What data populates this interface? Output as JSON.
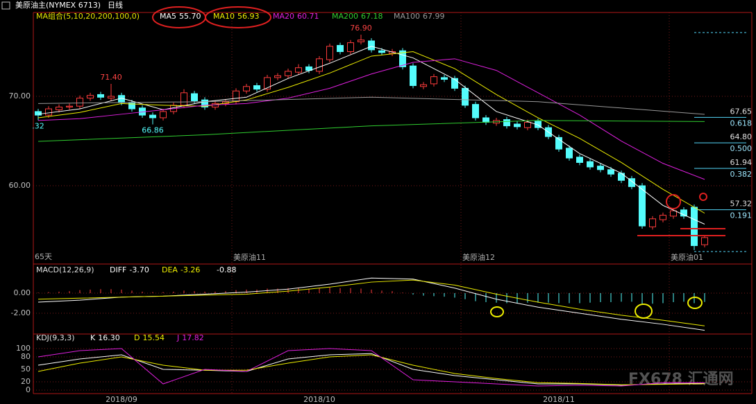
{
  "header": {
    "symbol": "美原油主(NYMEX 6713)",
    "period": "日线"
  },
  "watermark": "FX678 汇通网",
  "chart_data": [
    {
      "type": "candlestick",
      "title": "MA组合(5,10,20,200,100,0)",
      "categories": [
        null,
        null,
        null,
        null,
        null,
        null,
        null,
        null,
        "2018/09",
        null,
        null,
        null,
        null,
        null,
        null,
        null,
        null,
        null,
        null,
        null,
        null,
        null,
        null,
        null,
        null,
        null,
        null,
        "2018/10",
        null,
        null,
        null,
        null,
        null,
        null,
        null,
        null,
        null,
        null,
        null,
        null,
        null,
        null,
        null,
        null,
        null,
        null,
        null,
        null,
        null,
        null,
        "2018/11",
        null,
        null,
        null,
        null,
        null,
        null,
        null,
        null,
        null,
        null,
        null,
        null,
        null,
        null
      ],
      "open": [
        68.3,
        67.9,
        68.5,
        68.8,
        68.9,
        69.8,
        70.2,
        69.8,
        70.1,
        69.3,
        68.7,
        67.9,
        67.6,
        68.3,
        69.0,
        70.3,
        69.6,
        68.8,
        69.2,
        69.4,
        70.6,
        71.2,
        70.8,
        72.1,
        72.3,
        72.7,
        73.3,
        72.8,
        74.1,
        75.7,
        75.0,
        76.1,
        76.2,
        75.1,
        74.8,
        75.1,
        73.4,
        71.1,
        71.4,
        72.1,
        72.0,
        70.9,
        69.1,
        67.6,
        67.0,
        67.4,
        66.9,
        66.5,
        67.2,
        66.5,
        65.4,
        64.2,
        63.2,
        62.7,
        62.2,
        61.8,
        61.4,
        60.8,
        60.0,
        55.4,
        56.2,
        56.6,
        57.3,
        57.6,
        53.4
      ],
      "high": [
        68.6,
        68.9,
        69.1,
        69.2,
        70.1,
        70.4,
        70.5,
        71.4,
        70.4,
        69.6,
        69.0,
        68.2,
        68.6,
        69.3,
        70.8,
        70.6,
        69.9,
        69.5,
        69.7,
        70.9,
        71.4,
        71.5,
        72.4,
        72.6,
        73.1,
        73.6,
        73.6,
        74.5,
        75.9,
        76.0,
        76.3,
        76.9,
        76.5,
        75.4,
        75.3,
        75.4,
        73.7,
        71.6,
        72.5,
        72.4,
        72.3,
        71.2,
        69.4,
        67.9,
        67.6,
        67.7,
        67.2,
        67.4,
        67.5,
        66.8,
        65.7,
        64.5,
        63.5,
        63.0,
        62.5,
        62.1,
        61.7,
        61.1,
        60.3,
        56.6,
        57.0,
        57.5,
        57.6,
        57.9,
        54.5
      ],
      "low": [
        67.32,
        67.6,
        68.2,
        68.5,
        68.6,
        69.5,
        69.6,
        69.5,
        69.0,
        68.3,
        67.6,
        66.86,
        67.3,
        68.0,
        68.7,
        69.2,
        68.5,
        68.5,
        68.9,
        69.1,
        70.3,
        70.5,
        70.5,
        71.8,
        72.0,
        72.4,
        72.6,
        72.5,
        73.8,
        74.7,
        74.7,
        75.8,
        74.9,
        74.6,
        74.5,
        73.0,
        70.9,
        70.8,
        71.1,
        71.6,
        70.6,
        68.7,
        67.3,
        66.8,
        66.7,
        66.4,
        66.3,
        66.2,
        66.2,
        65.2,
        63.8,
        62.8,
        62.3,
        61.8,
        61.5,
        61.0,
        60.3,
        59.6,
        55.2,
        55.1,
        55.9,
        56.3,
        56.3,
        52.8,
        53.1
      ],
      "close": [
        67.9,
        68.6,
        68.8,
        68.9,
        69.8,
        70.1,
        69.9,
        70.0,
        69.3,
        68.6,
        67.9,
        67.6,
        68.3,
        69.0,
        70.4,
        69.5,
        68.8,
        69.2,
        69.4,
        70.6,
        71.1,
        70.8,
        72.1,
        72.3,
        72.8,
        73.2,
        72.9,
        74.2,
        75.6,
        75.0,
        76.0,
        76.3,
        75.2,
        74.9,
        75.0,
        73.3,
        71.2,
        71.3,
        72.2,
        71.9,
        70.9,
        69.0,
        67.6,
        67.1,
        67.3,
        66.7,
        66.6,
        67.1,
        66.5,
        65.5,
        64.1,
        63.1,
        62.6,
        62.1,
        61.8,
        61.3,
        60.6,
        59.9,
        55.5,
        56.3,
        56.7,
        57.2,
        56.6,
        53.3,
        54.2
      ],
      "up_color": "#ff3c3c",
      "down_color": "#54fcfc",
      "ylim": [
        51.32,
        79.38
      ],
      "yticks": [
        {
          "value": 70,
          "label": "70.00"
        },
        {
          "value": 60,
          "label": "60.00"
        }
      ],
      "grid": true,
      "series": [
        {
          "name": "MA5",
          "last_label": "55.70",
          "color": "#ffffff",
          "x": [
            0,
            4,
            8,
            12,
            16,
            20,
            24,
            28,
            32,
            36,
            40,
            44,
            48,
            52,
            56,
            60,
            64
          ],
          "values": [
            68.0,
            68.6,
            69.8,
            68.5,
            69.4,
            69.9,
            72.0,
            73.7,
            75.6,
            74.3,
            71.9,
            68.3,
            66.8,
            63.6,
            61.4,
            57.8,
            55.7
          ]
        },
        {
          "name": "MA10",
          "last_label": "56.93",
          "color": "#f0f000",
          "x": [
            0,
            4,
            8,
            12,
            16,
            20,
            24,
            28,
            32,
            36,
            40,
            44,
            48,
            52,
            56,
            60,
            64
          ],
          "values": [
            67.6,
            68.2,
            69.2,
            69.0,
            68.9,
            69.6,
            71.0,
            72.6,
            74.5,
            75.0,
            73.1,
            70.2,
            67.6,
            65.3,
            62.6,
            59.6,
            56.93
          ]
        },
        {
          "name": "MA20",
          "last_label": "60.71",
          "color": "#e020e0",
          "x": [
            0,
            4,
            8,
            12,
            16,
            20,
            24,
            28,
            32,
            36,
            40,
            44,
            48,
            52,
            56,
            60,
            64
          ],
          "values": [
            67.3,
            67.5,
            68.0,
            68.5,
            69.0,
            69.2,
            69.8,
            70.9,
            72.5,
            73.8,
            74.2,
            72.9,
            70.4,
            67.9,
            65.0,
            62.5,
            60.71
          ]
        },
        {
          "name": "MA200",
          "last_label": "67.18",
          "color": "#30d030",
          "x": [
            0,
            16,
            32,
            48,
            64
          ],
          "values": [
            64.96,
            65.7,
            66.7,
            67.3,
            67.18
          ]
        },
        {
          "name": "MA100",
          "last_label": "67.99",
          "color": "#9a9a9a",
          "x": [
            0,
            16,
            32,
            48,
            64
          ],
          "values": [
            69.2,
            69.4,
            69.9,
            69.4,
            67.99
          ]
        }
      ],
      "annotations": [
        {
          "x": 7,
          "value": 71.4,
          "label": "71.40"
        },
        {
          "x": 11,
          "value": 66.86,
          "label": "66.86"
        },
        {
          "x": 31,
          "value": 76.9,
          "label": "76.90"
        },
        {
          "x": 0,
          "value": 67.32,
          "label": ".32"
        }
      ],
      "span_label": "65天",
      "contract_labels": [
        {
          "x": 19,
          "label": "美原油11"
        },
        {
          "x": 41,
          "label": "美原油12"
        },
        {
          "x": 61,
          "label": "美原油01"
        }
      ],
      "fib_levels": [
        {
          "price": {
            "value": 67.65,
            "label": "67.65"
          },
          "ratio": {
            "value": 0.618,
            "label": "0.618"
          }
        },
        {
          "price": {
            "value": 64.8,
            "label": "64.80"
          },
          "ratio": {
            "value": 0.5,
            "label": "0.500"
          }
        },
        {
          "price": {
            "value": 61.94,
            "label": "61.94"
          },
          "ratio": {
            "value": 0.382,
            "label": "0.382"
          }
        },
        {
          "price": {
            "value": 57.32,
            "label": "57.32"
          },
          "ratio": {
            "value": 0.191,
            "label": "0.191"
          }
        }
      ],
      "fib_range": [
        77.13,
        52.64
      ]
    },
    {
      "type": "bar",
      "title": "MACD(12,26,9)",
      "values": [
        0.05,
        0.1,
        0.15,
        0.2,
        0.3,
        0.35,
        0.4,
        0.4,
        0.35,
        0.25,
        0.15,
        0.1,
        0.1,
        0.15,
        0.25,
        0.2,
        0.15,
        0.15,
        0.2,
        0.3,
        0.35,
        0.35,
        0.45,
        0.45,
        0.5,
        0.5,
        0.45,
        0.5,
        0.55,
        0.5,
        0.5,
        0.45,
        0.35,
        0.25,
        0.2,
        0.05,
        -0.15,
        -0.25,
        -0.3,
        -0.35,
        -0.45,
        -0.6,
        -0.8,
        -0.9,
        -0.95,
        -1.0,
        -1.0,
        -0.95,
        -0.95,
        -0.95,
        -1.0,
        -1.0,
        -1.0,
        -0.95,
        -0.9,
        -0.9,
        -0.85,
        -0.85,
        -1.1,
        -1.05,
        -1.0,
        -0.9,
        -0.85,
        -1.0,
        -0.88
      ],
      "up_color": "#ff3c3c",
      "down_color": "#54fcfc",
      "ylim": [
        -4.07,
        2.76
      ],
      "yticks": [
        {
          "value": 0,
          "label": "0.00"
        },
        {
          "value": -2,
          "label": "-2.00"
        }
      ],
      "grid": true,
      "series": [
        {
          "name": "DIFF",
          "last_label": "-3.70",
          "color": "#ffffff",
          "x": [
            0,
            4,
            8,
            12,
            16,
            20,
            24,
            28,
            32,
            36,
            40,
            44,
            48,
            52,
            56,
            60,
            64
          ],
          "values": [
            -0.9,
            -0.7,
            -0.4,
            -0.3,
            -0.1,
            0.1,
            0.4,
            0.9,
            1.5,
            1.4,
            0.5,
            -0.6,
            -1.4,
            -2.0,
            -2.6,
            -3.1,
            -3.7
          ]
        },
        {
          "name": "DEA",
          "last_label": "-3.26",
          "color": "#f0f000",
          "x": [
            0,
            4,
            8,
            12,
            16,
            20,
            24,
            28,
            32,
            36,
            40,
            44,
            48,
            52,
            56,
            60,
            64
          ],
          "values": [
            -0.6,
            -0.5,
            -0.4,
            -0.3,
            -0.2,
            -0.1,
            0.2,
            0.6,
            1.1,
            1.3,
            0.8,
            -0.1,
            -0.9,
            -1.6,
            -2.2,
            -2.7,
            -3.26
          ]
        }
      ]
    },
    {
      "type": "line",
      "title": "KDJ(9,3,3)",
      "ylim": [
        -8.3,
        121.7
      ],
      "yticks": [
        100,
        80,
        50,
        20,
        0
      ],
      "grid": true,
      "series": [
        {
          "name": "K",
          "last_label": "16.30",
          "color": "#ffffff",
          "x": [
            0,
            4,
            8,
            12,
            16,
            20,
            24,
            28,
            32,
            36,
            40,
            44,
            48,
            52,
            56,
            60,
            64
          ],
          "values": [
            60,
            75,
            85,
            50,
            48,
            45,
            75,
            85,
            88,
            50,
            35,
            25,
            15,
            15,
            12,
            15,
            16.3
          ]
        },
        {
          "name": "D",
          "last_label": "15.54",
          "color": "#f0f000",
          "x": [
            0,
            4,
            8,
            12,
            16,
            20,
            24,
            28,
            32,
            36,
            40,
            44,
            48,
            52,
            56,
            60,
            64
          ],
          "values": [
            45,
            65,
            80,
            60,
            48,
            48,
            65,
            80,
            85,
            60,
            40,
            28,
            18,
            16,
            13,
            14,
            15.54
          ]
        },
        {
          "name": "J",
          "last_label": "17.82",
          "color": "#e020e0",
          "x": [
            0,
            4,
            8,
            12,
            16,
            20,
            24,
            28,
            32,
            36,
            40,
            44,
            48,
            52,
            56,
            60,
            64
          ],
          "values": [
            80,
            95,
            100,
            15,
            50,
            45,
            95,
            100,
            95,
            25,
            20,
            15,
            10,
            12,
            10,
            18,
            17.82
          ]
        }
      ]
    }
  ]
}
